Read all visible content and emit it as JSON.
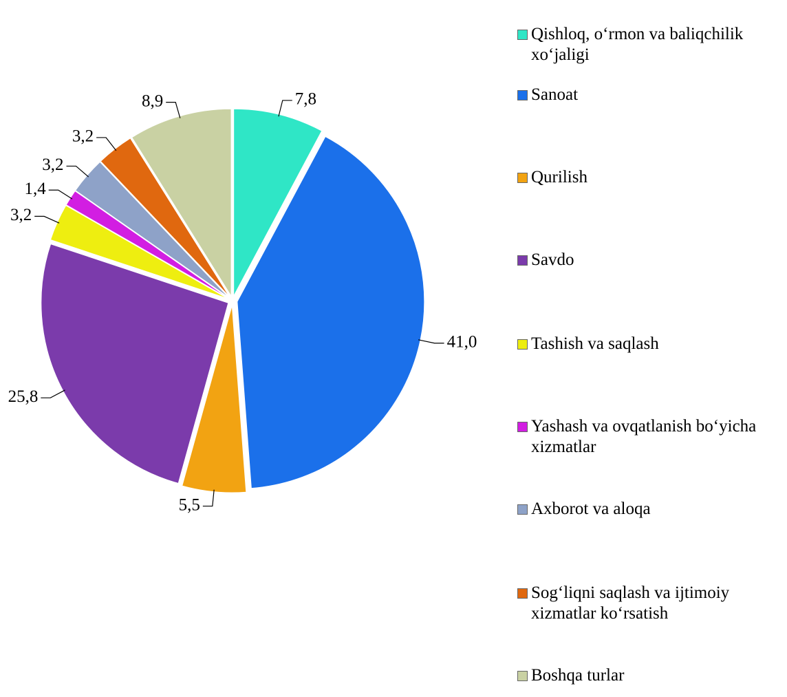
{
  "chart_data": {
    "type": "pie",
    "categories": [
      "Qishloq, o‘rmon va baliqchilik xo‘jaligi",
      "Sanoat",
      "Qurilish",
      "Savdo",
      "Tashish va saqlash",
      "Yashash va ovqatlanish bo‘yicha xizmatlar",
      "Axborot va aloqa",
      "Sog‘liqni saqlash va ijtimoiy xizmatlar ko‘rsatish",
      "Boshqa turlar"
    ],
    "values": [
      7.8,
      41.0,
      5.5,
      25.8,
      3.2,
      1.4,
      3.2,
      3.2,
      8.9
    ],
    "value_labels": [
      "7,8",
      "41,0",
      "5,5",
      "25,8",
      "3,2",
      "1,4",
      "3,2",
      "3,2",
      "8,9"
    ],
    "colors": [
      "#2fe6c6",
      "#1b70ea",
      "#f2a312",
      "#7b3bab",
      "#eeee10",
      "#d21ee2",
      "#8ea2c8",
      "#e0680f",
      "#c9d1a3"
    ],
    "legend": "right"
  }
}
